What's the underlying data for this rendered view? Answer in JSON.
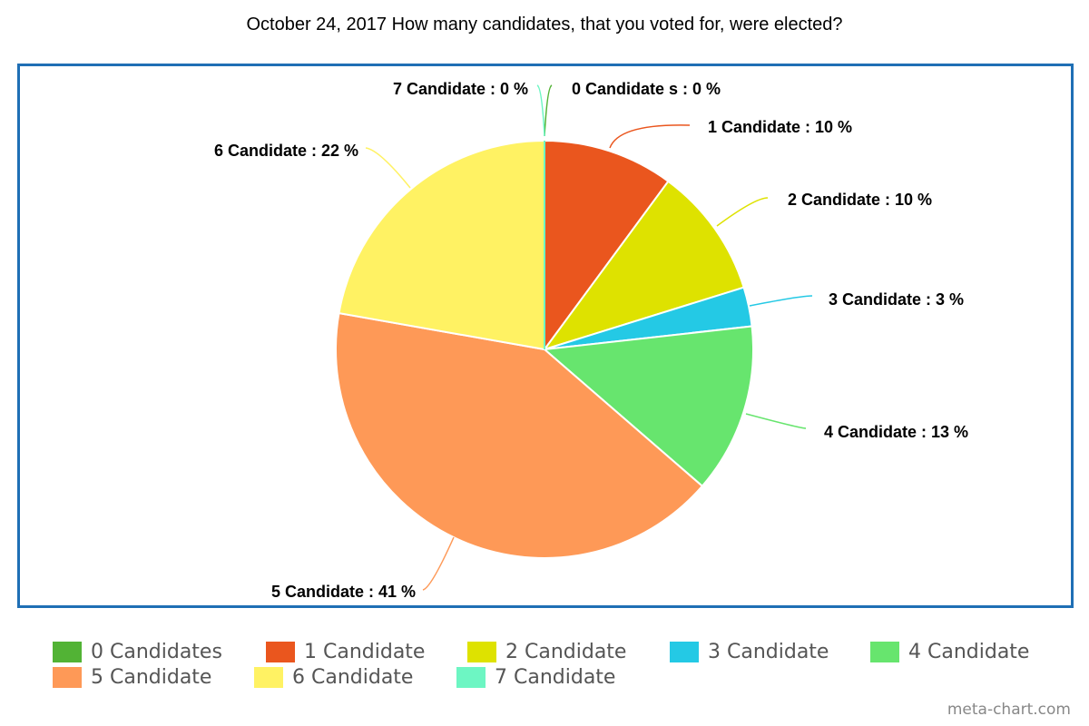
{
  "chart_data": {
    "type": "pie",
    "title": "October 24, 2017 How many candidates, that you voted for, were elected?",
    "legend_position": "bottom",
    "slices": [
      {
        "name": "0 Candidates",
        "label": "0 Candidate s : 0 %",
        "value": 0,
        "color": "#52b335"
      },
      {
        "name": "1 Candidate",
        "label": "1 Candidate : 10 %",
        "value": 10,
        "color": "#ea561e"
      },
      {
        "name": "2 Candidate",
        "label": "2 Candidate : 10 %",
        "value": 10,
        "color": "#dee200"
      },
      {
        "name": "3 Candidate",
        "label": "3 Candidate : 3 %",
        "value": 3,
        "color": "#24c9e5"
      },
      {
        "name": "4 Candidate",
        "label": "4 Candidate : 13 %",
        "value": 13,
        "color": "#67e56e"
      },
      {
        "name": "5 Candidate",
        "label": "5 Candidate : 41 %",
        "value": 41,
        "color": "#fe9957"
      },
      {
        "name": "6 Candidate",
        "label": "6 Candidate : 22 %",
        "value": 22,
        "color": "#fff263"
      },
      {
        "name": "7 Candidate",
        "label": "7 Candidate : 0 %",
        "value": 0,
        "color": "#6df6c3"
      }
    ]
  },
  "watermark": "meta-chart.com"
}
